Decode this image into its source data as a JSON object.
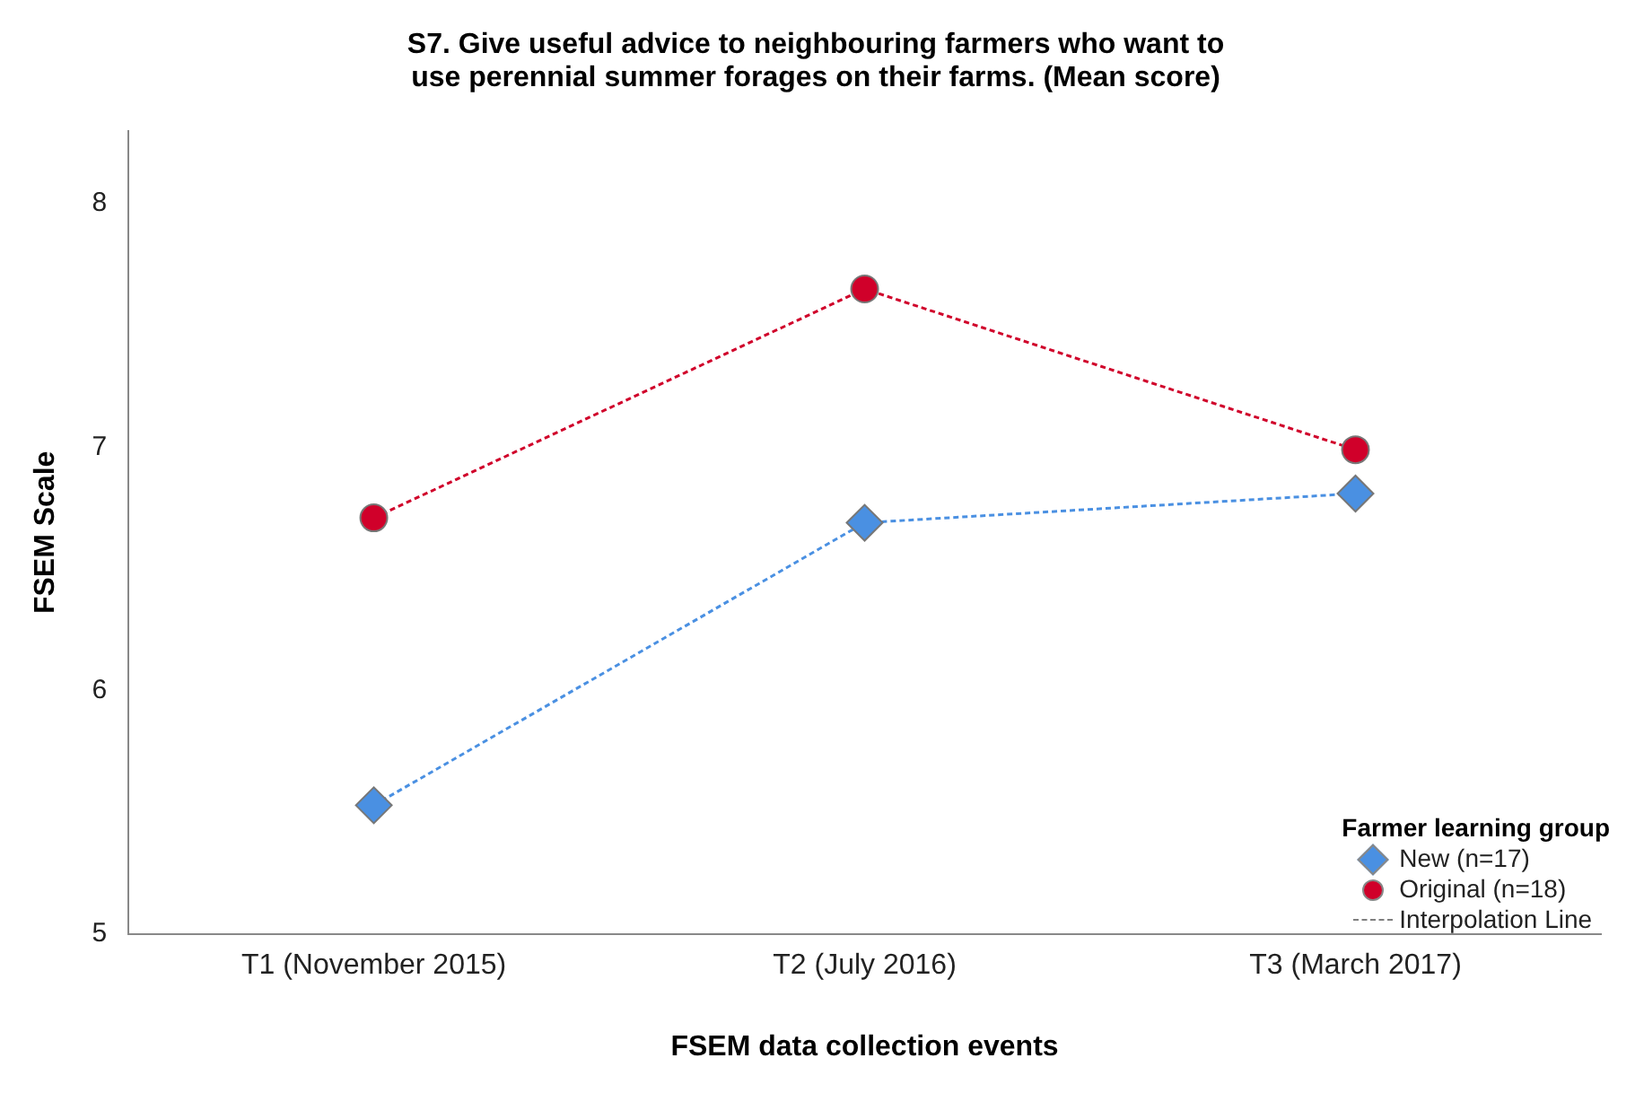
{
  "chart_data": {
    "type": "line",
    "title": "S7. Give useful advice to neighbouring farmers who want to use perennial summer forages on their farms. (Mean score)",
    "xlabel": "FSEM data collection events",
    "ylabel": "FSEM Scale",
    "legend_title": "Farmer learning group",
    "categories": [
      "T1 (November 2015)",
      "T2 (July 2016)",
      "T3 (March 2017)"
    ],
    "series": [
      {
        "name": "New (n=17)",
        "color": "#4a90e2",
        "values": [
          5.53,
          6.69,
          6.81
        ],
        "marker": "diamond",
        "line_style": "dashed"
      },
      {
        "name": "Original (n=18)",
        "color": "#d0002a",
        "values": [
          6.71,
          7.65,
          6.99
        ],
        "marker": "circle",
        "line_style": "dashed"
      },
      {
        "name": "Interpolation Line",
        "color": "#808080",
        "values": [
          null,
          null,
          null
        ],
        "marker": "none",
        "line_style": "dashed"
      }
    ],
    "ylim": [
      5,
      8.3
    ],
    "yticks": [
      5,
      6,
      7,
      8
    ],
    "grid": false,
    "legend": "bottom right"
  }
}
